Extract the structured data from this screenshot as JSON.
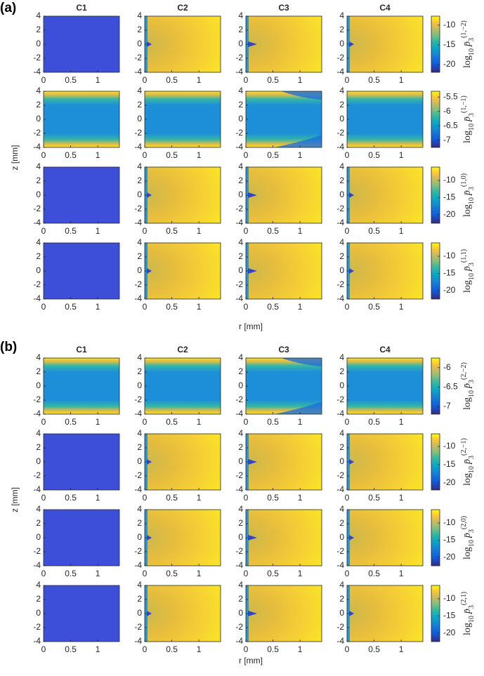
{
  "panels": [
    {
      "label": "(a)",
      "columns": [
        "C1",
        "C2",
        "C3",
        "C4"
      ],
      "xlabel": "r [mm]",
      "ylabel": "z [mm]",
      "rows": [
        {
          "colorbar_sup": "(1,−2)",
          "clim": [
            -22,
            -7.7
          ],
          "cticks": [
            -10,
            -15,
            -20
          ]
        },
        {
          "colorbar_sup": "(1,−1)",
          "clim": [
            -7.25,
            -5.3
          ],
          "cticks": [
            -5.5,
            -6,
            -6.5,
            -7
          ]
        },
        {
          "colorbar_sup": "(1,0)",
          "clim": [
            -22.5,
            -6.1
          ],
          "cticks": [
            -10,
            -15,
            -20
          ]
        },
        {
          "colorbar_sup": "(1,1)",
          "clim": [
            -22.5,
            -6.1
          ],
          "cticks": [
            -10,
            -15,
            -20
          ]
        }
      ]
    },
    {
      "label": "(b)",
      "columns": [
        "C1",
        "C2",
        "C3",
        "C4"
      ],
      "xlabel": "r [mm]",
      "ylabel": "z [mm]",
      "rows": [
        {
          "colorbar_sup": "(2,−2)",
          "clim": [
            -7.2,
            -5.75
          ],
          "cticks": [
            -6,
            -6.5,
            -7
          ]
        },
        {
          "colorbar_sup": "(2,−1)",
          "clim": [
            -22,
            -6.5
          ],
          "cticks": [
            -10,
            -15,
            -20
          ]
        },
        {
          "colorbar_sup": "(2,0)",
          "clim": [
            -22.5,
            -6.1
          ],
          "cticks": [
            -10,
            -15,
            -20
          ]
        },
        {
          "colorbar_sup": "(2,1)",
          "clim": [
            -22.5,
            -6.1
          ],
          "cticks": [
            -10,
            -15,
            -20
          ]
        }
      ]
    }
  ],
  "axes": {
    "xlim": [
      0,
      1.4
    ],
    "xticks": [
      0,
      0.5,
      1
    ],
    "ylim": [
      -4,
      4
    ],
    "yticks": [
      4,
      2,
      0,
      -2,
      -4
    ]
  },
  "colorbar_label": {
    "log": "log",
    "base": "10",
    "symbol": "p̄",
    "index": "3"
  }
}
